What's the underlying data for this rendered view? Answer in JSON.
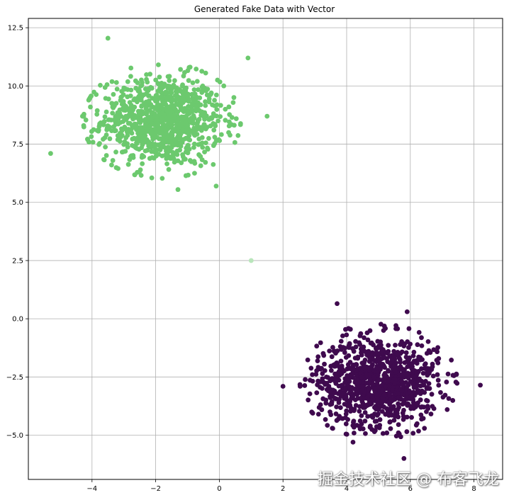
{
  "chart_data": {
    "type": "scatter",
    "title": "Generated Fake Data with Vector",
    "xlabel": "",
    "ylabel": "",
    "xlim": [
      -6.0,
      8.9
    ],
    "ylim": [
      -6.9,
      12.9
    ],
    "x_ticks": [
      -4,
      -2,
      0,
      2,
      4,
      6,
      8
    ],
    "y_ticks": [
      -5.0,
      -2.5,
      0.0,
      2.5,
      5.0,
      7.5,
      10.0,
      12.5
    ],
    "x_tick_labels": [
      "−4",
      "−2",
      "0",
      "2",
      "4",
      "6",
      "8"
    ],
    "y_tick_labels": [
      "−5.0",
      "−2.5",
      "0.0",
      "2.5",
      "5.0",
      "7.5",
      "10.0",
      "12.5"
    ],
    "grid": true,
    "legend": "none",
    "series": [
      {
        "color": "#6cc96e",
        "n_points": 1000,
        "center": [
          -1.8,
          8.5
        ],
        "std": [
          0.95,
          0.95
        ],
        "sample_points": [
          [
            -5.3,
            7.1
          ],
          [
            -3.5,
            12.05
          ],
          [
            -4.3,
            8.7
          ],
          [
            1.5,
            8.7
          ],
          [
            0.9,
            11.2
          ],
          [
            -1.3,
            5.55
          ],
          [
            -0.1,
            5.7
          ]
        ]
      },
      {
        "color": "#3f0a4e",
        "n_points": 1000,
        "center": [
          5.0,
          -2.7
        ],
        "std": [
          0.95,
          0.95
        ],
        "sample_points": [
          [
            2.0,
            -2.9
          ],
          [
            8.2,
            -2.85
          ],
          [
            5.8,
            -6.0
          ],
          [
            3.7,
            0.65
          ],
          [
            5.9,
            0.3
          ],
          [
            4.2,
            -5.3
          ]
        ]
      },
      {
        "color": "#b9e6bb",
        "n_points": 1,
        "sample_points": [
          [
            1.0,
            2.5
          ]
        ]
      }
    ]
  },
  "watermark": "掘金技术社区 @ 布客飞龙"
}
